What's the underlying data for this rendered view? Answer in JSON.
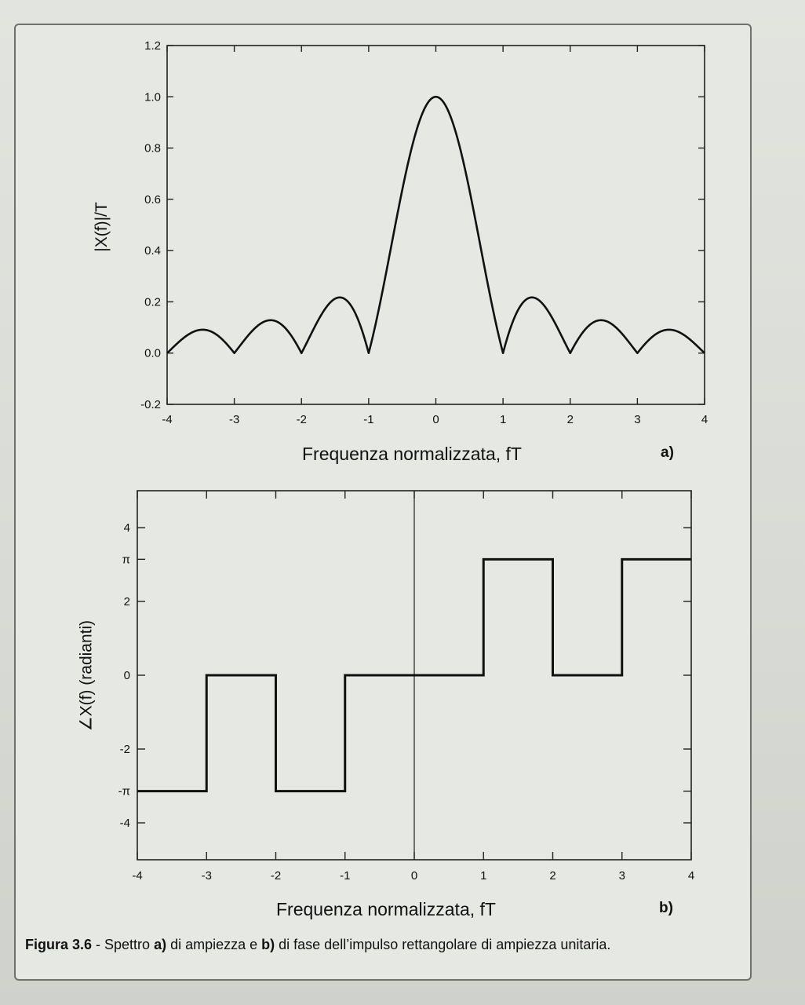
{
  "caption": {
    "figure": "Figura 3.6",
    "text_1": " - Spettro ",
    "a": "a)",
    "text_2": " di ampiezza e ",
    "b": "b)",
    "text_3": " di fase dell’impulso rettangolare di ampiezza unitaria."
  },
  "chart_data": [
    {
      "type": "line",
      "panel_label": "a)",
      "xlabel": "Frequenza normalizzata, fT",
      "ylabel": "|X(f)|/T",
      "xlim": [
        -4,
        4
      ],
      "ylim": [
        -0.2,
        1.2
      ],
      "xticks": [
        "-4",
        "-3",
        "-2",
        "-1",
        "0",
        "1",
        "2",
        "3",
        "4"
      ],
      "yticks": [
        "-0.2",
        "0.0",
        "0.2",
        "0.4",
        "0.6",
        "0.8",
        "1.0",
        "1.2"
      ],
      "grid": false,
      "series": [
        {
          "function": "|sinc(fT)|",
          "x": [
            -4,
            -3.5,
            -3,
            -2.5,
            -2,
            -1.43,
            -1,
            -0.5,
            0,
            0.5,
            1,
            1.43,
            2,
            2.5,
            3,
            3.5,
            4
          ],
          "y": [
            0.0,
            0.09,
            0.0,
            0.13,
            0.0,
            0.22,
            0.0,
            0.64,
            1.0,
            0.64,
            0.0,
            0.22,
            0.0,
            0.13,
            0.0,
            0.09,
            0.0
          ]
        }
      ]
    },
    {
      "type": "line",
      "panel_label": "b)",
      "xlabel": "Frequenza normalizzata, fT",
      "ylabel": "∠X(f) (radianti)",
      "xlim": [
        -4,
        4
      ],
      "ylim": [
        -5,
        5
      ],
      "xticks": [
        "-4",
        "-3",
        "-2",
        "-1",
        "0",
        "1",
        "2",
        "3",
        "4"
      ],
      "yticks": [
        "-4",
        "-π",
        "-2",
        "0",
        "2",
        "π",
        "4"
      ],
      "grid": false,
      "series": [
        {
          "shape": "step",
          "x": [
            -4,
            -3,
            -3,
            -2,
            -2,
            -1,
            -1,
            1,
            1,
            2,
            2,
            3,
            3,
            4
          ],
          "y": [
            -3.1416,
            -3.1416,
            0,
            0,
            -3.1416,
            -3.1416,
            0,
            0,
            3.1416,
            3.1416,
            0,
            0,
            3.1416,
            3.1416
          ]
        }
      ]
    }
  ]
}
